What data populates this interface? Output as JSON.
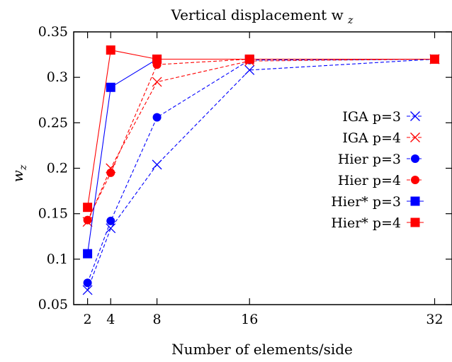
{
  "chart_data": {
    "type": "line",
    "title": "Vertical displacement w",
    "title_subscript": "z",
    "xlabel": "Number of elements/side",
    "ylabel": "w",
    "ylabel_subscript": "z",
    "x": [
      2,
      4,
      8,
      16,
      32
    ],
    "xticks": [
      "2",
      "4",
      "8",
      "16",
      "32"
    ],
    "yticks": [
      "0.05",
      "0.1",
      "0.15",
      "0.2",
      "0.25",
      "0.3",
      "0.35"
    ],
    "ylim": [
      0.05,
      0.35
    ],
    "xlim": [
      0.8,
      33.5
    ],
    "grid": false,
    "legend_position": "right",
    "series": [
      {
        "name": "IGA p=3",
        "color": "#0000ff",
        "marker": "x",
        "dash": true,
        "values": [
          0.066,
          0.134,
          0.204,
          0.308,
          0.32
        ]
      },
      {
        "name": "IGA p=4",
        "color": "#ff0000",
        "marker": "x",
        "dash": true,
        "values": [
          0.141,
          0.2,
          0.295,
          0.318,
          0.32
        ]
      },
      {
        "name": "Hier p=3",
        "color": "#0000ff",
        "marker": "circle",
        "dash": true,
        "values": [
          0.074,
          0.142,
          0.256,
          0.319,
          0.32
        ]
      },
      {
        "name": "Hier p=4",
        "color": "#ff0000",
        "marker": "circle",
        "dash": true,
        "values": [
          0.143,
          0.195,
          0.314,
          0.32,
          0.32
        ]
      },
      {
        "name": "Hier* p=3",
        "color": "#0000ff",
        "marker": "square",
        "dash": false,
        "values": [
          0.106,
          0.289,
          0.32,
          0.32,
          0.32
        ]
      },
      {
        "name": "Hier* p=4",
        "color": "#ff0000",
        "marker": "square",
        "dash": false,
        "values": [
          0.157,
          0.33,
          0.32,
          0.32,
          0.32
        ]
      }
    ]
  }
}
